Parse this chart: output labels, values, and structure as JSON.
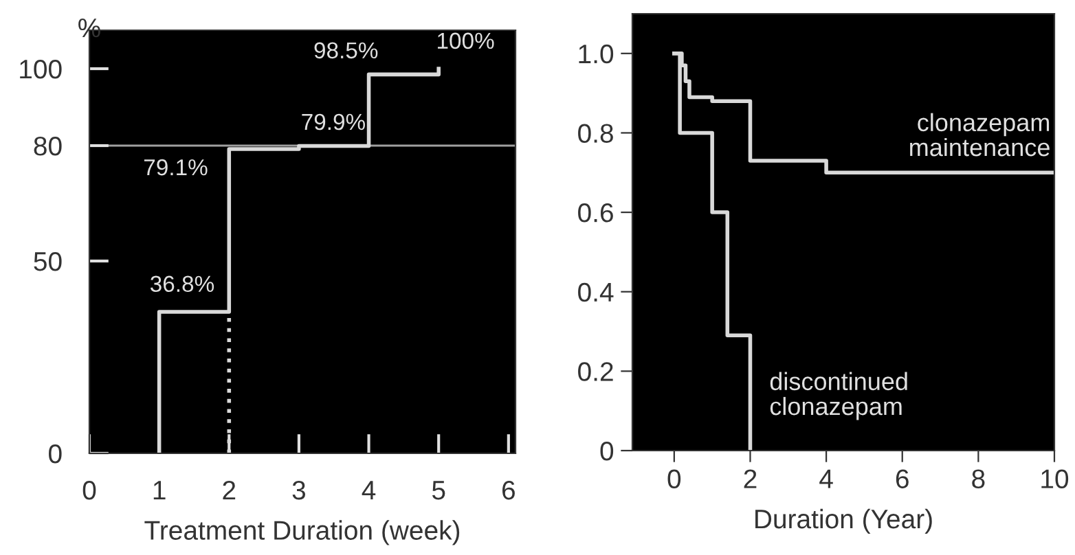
{
  "chart_data": [
    {
      "type": "step",
      "xlabel": "Treatment Duration (week)",
      "ylabel": "%",
      "series": [
        {
          "color": "#d9d9d9",
          "x": [
            1,
            1,
            2,
            3,
            4,
            5
          ],
          "values": [
            0,
            36.8,
            79.1,
            79.9,
            98.5,
            100
          ],
          "line_style": "solid"
        },
        {
          "color": "#d9d9d9",
          "x": [
            2,
            2
          ],
          "values": [
            0,
            36.8
          ],
          "line_style": "dotted"
        }
      ],
      "annotations": [
        {
          "text": "36.8%",
          "x": 1,
          "y": 36.8
        },
        {
          "text": "79.1%",
          "x": 2,
          "y": 79.1
        },
        {
          "text": "79.9%",
          "x": 3,
          "y": 79.9
        },
        {
          "text": "98.5%",
          "x": 4,
          "y": 98.5
        },
        {
          "text": "100%",
          "x": 5,
          "y": 100
        }
      ],
      "ref_lines": [
        {
          "axis": "y",
          "value": 80,
          "color": "#a0a0a0"
        }
      ],
      "xlim": [
        0,
        6.1
      ],
      "xticks": [
        0,
        1,
        2,
        3,
        4,
        5,
        6
      ],
      "ylim": [
        0,
        110
      ],
      "yticks": [
        0,
        50,
        80,
        100
      ],
      "grid": false,
      "legend": false
    },
    {
      "type": "step",
      "xlabel": "Duration (Year)",
      "series": [
        {
          "name": "clonazepam\nmaintenance",
          "color": "#d9d9d9",
          "x": [
            0,
            0.2,
            0.3,
            0.4,
            1,
            2,
            4,
            10
          ],
          "values": [
            1,
            0.97,
            0.93,
            0.89,
            0.88,
            0.73,
            0.7,
            0.7
          ]
        },
        {
          "name": "discontinued\nclonazepam",
          "color": "#d9d9d9",
          "x": [
            0,
            0.15,
            1,
            1.4,
            2
          ],
          "values": [
            1,
            0.8,
            0.6,
            0.29,
            0
          ]
        }
      ],
      "xlim": [
        -1.1,
        10
      ],
      "xticks": [
        0,
        2,
        4,
        6,
        8,
        10
      ],
      "ylim": [
        0,
        1.1
      ],
      "yticks": [
        0,
        {
          "value": 0.2,
          "label": "0.2"
        },
        {
          "value": 0.4,
          "label": "0.4"
        },
        {
          "value": 0.6,
          "label": "0.6"
        },
        {
          "value": 0.8,
          "label": "0.8"
        },
        {
          "value": 1,
          "label": "1.0"
        }
      ],
      "grid": false,
      "legend": false
    }
  ]
}
